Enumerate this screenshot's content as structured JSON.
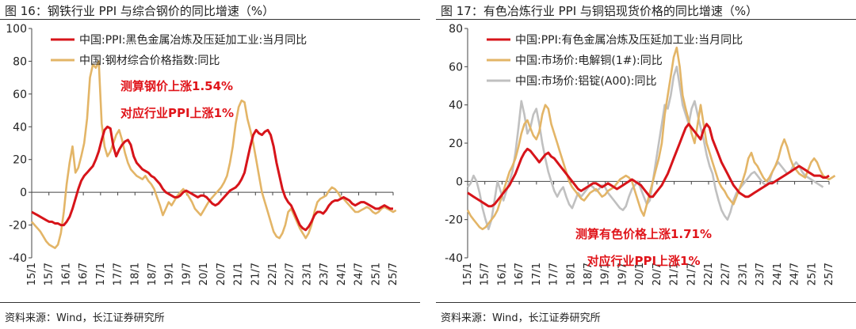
{
  "left": {
    "title": "图 16：钢铁行业 PPI 与综合钢价的同比增速（%）",
    "source": "资料来源：Wind，长江证券研究所",
    "chart_data": {
      "type": "line",
      "ylim": [
        -40,
        100
      ],
      "yticks": [
        -40,
        -20,
        0,
        20,
        40,
        60,
        80,
        100
      ],
      "xticks": [
        "15/1",
        "15/7",
        "16/1",
        "16/7",
        "17/1",
        "17/7",
        "18/1",
        "18/7",
        "19/1",
        "19/7",
        "20/1",
        "20/7",
        "21/1",
        "21/7",
        "22/1",
        "22/7",
        "23/1",
        "23/7",
        "24/1",
        "24/7",
        "25/1",
        "25/7"
      ],
      "grid": false,
      "legend_position": "top-left",
      "annotations": [
        "测算钢价上涨1.54%",
        "对应行业PPI上涨1%"
      ],
      "series": [
        {
          "name": "中国:PPI:黑色金属冶炼及压延加工业:当月同比",
          "color": "#d7141a",
          "values": [
            -12,
            -13,
            -14,
            -15,
            -16,
            -17,
            -18,
            -18,
            -19,
            -19,
            -20,
            -20,
            -18,
            -15,
            -10,
            -4,
            2,
            7,
            10,
            12,
            14,
            16,
            20,
            25,
            32,
            38,
            40,
            39,
            28,
            22,
            26,
            29,
            31,
            32,
            29,
            22,
            18,
            16,
            14,
            13,
            12,
            10,
            9,
            7,
            5,
            2,
            0,
            -1,
            -2,
            -3,
            -3,
            -2,
            0,
            1,
            0,
            -1,
            -2,
            -3,
            -2,
            -2,
            -3,
            -5,
            -7,
            -8,
            -7,
            -5,
            -3,
            -1,
            1,
            2,
            3,
            5,
            8,
            12,
            20,
            28,
            35,
            38,
            36,
            35,
            37,
            38,
            35,
            28,
            18,
            10,
            2,
            -3,
            -6,
            -8,
            -12,
            -16,
            -20,
            -22,
            -23,
            -21,
            -18,
            -14,
            -12,
            -12,
            -13,
            -11,
            -8,
            -6,
            -5,
            -5,
            -4,
            -3,
            -4,
            -5,
            -7,
            -8,
            -7,
            -6,
            -6,
            -7,
            -8,
            -9,
            -10,
            -10,
            -9,
            -8,
            -9,
            -10,
            -10
          ]
        },
        {
          "name": "中国:钢材综合价格指数:同比",
          "color": "#e3b567",
          "values": [
            -18,
            -20,
            -22,
            -24,
            -27,
            -30,
            -32,
            -33,
            -34,
            -32,
            -25,
            -12,
            5,
            18,
            28,
            12,
            15,
            22,
            30,
            45,
            70,
            78,
            76,
            80,
            42,
            28,
            22,
            25,
            30,
            35,
            38,
            32,
            24,
            18,
            14,
            12,
            10,
            9,
            8,
            10,
            7,
            5,
            2,
            -3,
            -8,
            -14,
            -10,
            -6,
            -8,
            -5,
            -2,
            0,
            2,
            0,
            -3,
            -6,
            -10,
            -12,
            -14,
            -11,
            -8,
            -5,
            -3,
            -1,
            1,
            3,
            6,
            10,
            18,
            28,
            42,
            52,
            56,
            55,
            45,
            38,
            30,
            20,
            10,
            0,
            -6,
            -12,
            -18,
            -24,
            -27,
            -28,
            -25,
            -20,
            -12,
            -10,
            -14,
            -18,
            -22,
            -25,
            -28,
            -25,
            -20,
            -12,
            -6,
            -4,
            -3,
            -2,
            1,
            3,
            2,
            0,
            -3,
            -4,
            -6,
            -8,
            -10,
            -12,
            -12,
            -11,
            -10,
            -9,
            -10,
            -12,
            -13,
            -12,
            -10,
            -9,
            -10,
            -11,
            -12,
            -11
          ]
        }
      ]
    }
  },
  "right": {
    "title": "图 17：有色冶炼行业 PPI 与铜铝现货价格的同比增速（%）",
    "source": "资料来源：Wind，长江证券研究所",
    "chart_data": {
      "type": "line",
      "ylim": [
        -40,
        80
      ],
      "yticks": [
        -40,
        -20,
        0,
        20,
        40,
        60,
        80
      ],
      "xticks": [
        "15/1",
        "15/7",
        "16/1",
        "16/7",
        "17/1",
        "17/7",
        "18/1",
        "18/7",
        "19/1",
        "19/7",
        "20/1",
        "20/7",
        "21/1",
        "21/7",
        "22/1",
        "22/7",
        "23/1",
        "23/7",
        "24/1",
        "24/7",
        "25/1",
        "25/7"
      ],
      "grid": false,
      "legend_position": "top-left",
      "annotations": [
        "测算有色价格上涨1.71%",
        "对应行业PPI上涨1%"
      ],
      "series": [
        {
          "name": "中国:PPI:有色金属冶炼及压延加工业:当月同比",
          "color": "#d7141a",
          "values": [
            -6,
            -7,
            -8,
            -9,
            -10,
            -11,
            -12,
            -13,
            -13,
            -12,
            -10,
            -8,
            -6,
            -4,
            -2,
            1,
            4,
            8,
            12,
            15,
            17,
            16,
            14,
            12,
            10,
            12,
            14,
            15,
            13,
            12,
            10,
            8,
            6,
            4,
            2,
            0,
            -2,
            -4,
            -5,
            -4,
            -3,
            -2,
            -1,
            -1,
            -2,
            -3,
            -2,
            -1,
            -2,
            -3,
            -4,
            -3,
            -2,
            -1,
            0,
            1,
            0,
            -1,
            -2,
            -4,
            -6,
            -8,
            -8,
            -6,
            -4,
            -2,
            1,
            4,
            8,
            12,
            16,
            20,
            24,
            28,
            30,
            28,
            26,
            24,
            22,
            27,
            30,
            28,
            22,
            18,
            14,
            10,
            7,
            4,
            1,
            -2,
            -4,
            -6,
            -7,
            -8,
            -8,
            -7,
            -6,
            -5,
            -4,
            -3,
            -2,
            -1,
            -1,
            0,
            1,
            2,
            3,
            4,
            5,
            6,
            7,
            8,
            7,
            6,
            5,
            4,
            3,
            3,
            3,
            2,
            2,
            3
          ]
        },
        {
          "name": "中国:市场价:电解铜(1#):同比",
          "color": "#e3b567",
          "values": [
            -15,
            -18,
            -20,
            -22,
            -24,
            -25,
            -24,
            -22,
            -20,
            -18,
            -15,
            -10,
            -5,
            0,
            5,
            8,
            12,
            18,
            25,
            30,
            32,
            28,
            24,
            22,
            26,
            35,
            40,
            38,
            30,
            25,
            20,
            15,
            10,
            5,
            0,
            -3,
            -5,
            -7,
            -9,
            -10,
            -8,
            -6,
            -5,
            -4,
            -6,
            -8,
            -7,
            -5,
            -4,
            -3,
            -1,
            1,
            2,
            3,
            2,
            0,
            -5,
            -10,
            -15,
            -18,
            -12,
            -6,
            0,
            6,
            12,
            20,
            35,
            45,
            55,
            65,
            70,
            60,
            45,
            38,
            32,
            25,
            20,
            30,
            40,
            30,
            20,
            15,
            10,
            5,
            0,
            -3,
            -5,
            -8,
            -10,
            -12,
            -8,
            -4,
            0,
            5,
            12,
            15,
            10,
            8,
            5,
            2,
            0,
            2,
            5,
            8,
            12,
            18,
            22,
            18,
            12,
            8,
            6,
            4,
            3,
            2,
            6,
            10,
            12,
            10,
            6,
            3,
            2,
            1,
            2,
            3
          ]
        },
        {
          "name": "中国:市场价:铝锭(A00):同比",
          "color": "#c0c0c0",
          "values": [
            -3,
            -1,
            3,
            0,
            -6,
            -14,
            -20,
            -25,
            -20,
            -10,
            0,
            -5,
            -10,
            -5,
            0,
            5,
            15,
            28,
            42,
            35,
            25,
            28,
            35,
            38,
            30,
            20,
            12,
            5,
            0,
            -5,
            -8,
            -5,
            -3,
            -8,
            -12,
            -14,
            -10,
            -6,
            -8,
            -6,
            -4,
            -2,
            -3,
            -5,
            -4,
            -2,
            -3,
            -6,
            -8,
            -10,
            -12,
            -14,
            -15,
            -13,
            -8,
            -4,
            -2,
            0,
            -4,
            -8,
            -12,
            -10,
            0,
            10,
            20,
            30,
            40,
            38,
            45,
            55,
            60,
            50,
            40,
            35,
            30,
            38,
            42,
            35,
            28,
            22,
            14,
            8,
            4,
            -4,
            -10,
            -15,
            -18,
            -20,
            -16,
            -10,
            -6,
            -4,
            -2,
            0,
            2,
            4,
            5,
            3,
            1,
            -1,
            -2,
            0,
            5,
            8,
            10,
            8,
            6,
            4,
            5,
            8,
            10,
            8,
            5,
            3,
            2,
            1,
            0,
            -1,
            -2,
            -3
          ]
        }
      ]
    }
  }
}
